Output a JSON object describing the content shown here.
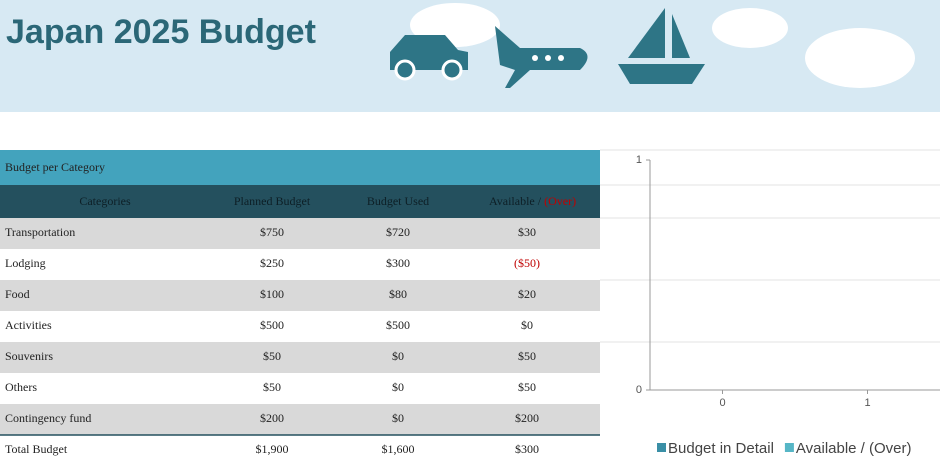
{
  "header": {
    "title": "Japan 2025 Budget"
  },
  "table": {
    "caption": "Budget per Category",
    "columns": [
      "Categories",
      "Planned Budget",
      "Budget Used",
      "Available / "
    ],
    "columns_emphasis": "(Over)",
    "over_color": "#c00000",
    "rows": [
      [
        "Transportation",
        "$750",
        "$720",
        "$30"
      ],
      [
        "Lodging",
        "$250",
        "$300",
        "($50)"
      ],
      [
        "Food",
        "$100",
        "$80",
        "$20"
      ],
      [
        "Activities",
        "$500",
        "$500",
        "$0"
      ],
      [
        "Souvenirs",
        "$50",
        "$0",
        "$50"
      ],
      [
        "Others",
        "$50",
        "$0",
        "$50"
      ],
      [
        "Contingency fund",
        "$200",
        "$0",
        "$200"
      ],
      [
        "Total Budget",
        "$1,900",
        "$1,600",
        "$300"
      ]
    ]
  },
  "chart": {
    "yticks": [
      1,
      0
    ],
    "xticks": [
      0,
      1
    ],
    "ylim": [
      0,
      1
    ],
    "xlim": [
      -0.5,
      1.5
    ],
    "legend": [
      {
        "name": "Budget in Detail",
        "color": "#3a8fa6"
      },
      {
        "name": "Available / (Over)",
        "color": "#56b6c6"
      }
    ]
  }
}
